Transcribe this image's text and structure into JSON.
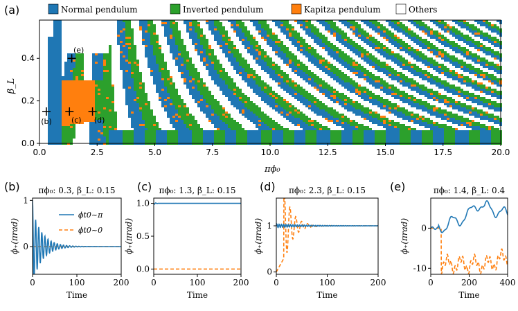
{
  "colors": {
    "normal": "#1f77b4",
    "inverted": "#2ca02c",
    "kapitza": "#ff7f0e",
    "others": "#ffffff",
    "line_a": "#1f77b4",
    "line_b": "#ff7f0e"
  },
  "chart_data": [
    {
      "id": "a",
      "type": "heatmap",
      "panel_label": "(a)",
      "xlabel": "πϕ₀",
      "ylabel": "β_L",
      "xlim": [
        0,
        20
      ],
      "ylim": [
        0,
        0.58
      ],
      "x_ticks": [
        "0.0",
        "2.5",
        "5.0",
        "7.5",
        "10.0",
        "12.5",
        "15.0",
        "17.5",
        "20.0"
      ],
      "x_tick_values": [
        0,
        2.5,
        5,
        7.5,
        10,
        12.5,
        15,
        17.5,
        20
      ],
      "y_ticks": [
        "0.0",
        "0.2",
        "0.4"
      ],
      "y_tick_values": [
        0,
        0.2,
        0.4
      ],
      "legend": [
        {
          "label": "Normal pendulum",
          "key": "normal"
        },
        {
          "label": "Inverted pendulum",
          "key": "inverted"
        },
        {
          "label": "Kapitza pendulum",
          "key": "kapitza"
        },
        {
          "label": "Others",
          "key": "others"
        }
      ],
      "markers": [
        {
          "label": "(b)",
          "x": 0.3,
          "y": 0.15
        },
        {
          "label": "(c)",
          "x": 1.3,
          "y": 0.15
        },
        {
          "label": "(d)",
          "x": 2.3,
          "y": 0.15
        },
        {
          "label": "(e)",
          "x": 1.4,
          "y": 0.4
        }
      ]
    },
    {
      "id": "b",
      "type": "line",
      "panel_label": "(b)",
      "title_prefix": "πϕ₀: 0.3, ",
      "title_suffix": "β_L: 0.15",
      "xlabel": "Time",
      "ylabel": "ϕ₊(πrad)",
      "xlim": [
        0,
        200
      ],
      "ylim": [
        -0.6,
        1.05
      ],
      "x_ticks": [
        "0",
        "100",
        "200"
      ],
      "y_ticks": [
        "0",
        "1"
      ],
      "legend": [
        "ϕt0~π",
        "ϕt0~0"
      ],
      "series": [
        {
          "name": "ϕt0~π",
          "style": "solid",
          "desc": "damped oscillation from 1 decaying to 0 by t≈90"
        },
        {
          "name": "ϕt0~0",
          "style": "dashed",
          "desc": "flat at 0"
        }
      ]
    },
    {
      "id": "c",
      "type": "line",
      "panel_label": "(c)",
      "title_prefix": "πϕ₀: 1.3, ",
      "title_suffix": "β_L: 0.15",
      "xlabel": "Time",
      "ylabel": "ϕ₊(πrad)",
      "xlim": [
        0,
        200
      ],
      "ylim": [
        -0.08,
        1.08
      ],
      "x_ticks": [
        "0",
        "100",
        "200"
      ],
      "y_ticks": [
        "0.0",
        "0.5",
        "1.0"
      ],
      "series": [
        {
          "name": "ϕt0~π",
          "style": "solid",
          "desc": "stays at 1.0"
        },
        {
          "name": "ϕt0~0",
          "style": "dashed",
          "desc": "stays at 0.0"
        }
      ]
    },
    {
      "id": "d",
      "type": "line",
      "panel_label": "(d)",
      "title_prefix": "πϕ₀: 2.3, ",
      "title_suffix": "β_L: 0.15",
      "xlabel": "Time",
      "ylabel": "ϕ₊(πrad)",
      "xlim": [
        0,
        200
      ],
      "ylim": [
        -0.05,
        1.6
      ],
      "x_ticks": [
        "0",
        "100",
        "200"
      ],
      "y_ticks": [
        "0",
        "1"
      ],
      "series": [
        {
          "name": "ϕt0~π",
          "style": "solid",
          "desc": "stays near 1 with small oscillation"
        },
        {
          "name": "ϕt0~0",
          "style": "dashed",
          "desc": "rises from 0 overshooting to ~1.5 and settles at 1"
        }
      ]
    },
    {
      "id": "e",
      "type": "line",
      "panel_label": "(e)",
      "title_prefix": "πϕ₀: 1.4, ",
      "title_suffix": "β_L: 0.4",
      "xlabel": "Time",
      "ylabel": "ϕ₊(πrad)",
      "xlim": [
        0,
        400
      ],
      "ylim": [
        -11.5,
        7.5
      ],
      "x_ticks": [
        "0",
        "200",
        "400"
      ],
      "y_ticks": [
        "-10",
        "0"
      ],
      "series": [
        {
          "name": "ϕt0~π",
          "style": "solid",
          "desc": "wanders upward to ~6 near t=240"
        },
        {
          "name": "ϕt0~0",
          "style": "dashed",
          "desc": "drops to ~-10 after t≈60 and fluctuates"
        }
      ]
    }
  ]
}
